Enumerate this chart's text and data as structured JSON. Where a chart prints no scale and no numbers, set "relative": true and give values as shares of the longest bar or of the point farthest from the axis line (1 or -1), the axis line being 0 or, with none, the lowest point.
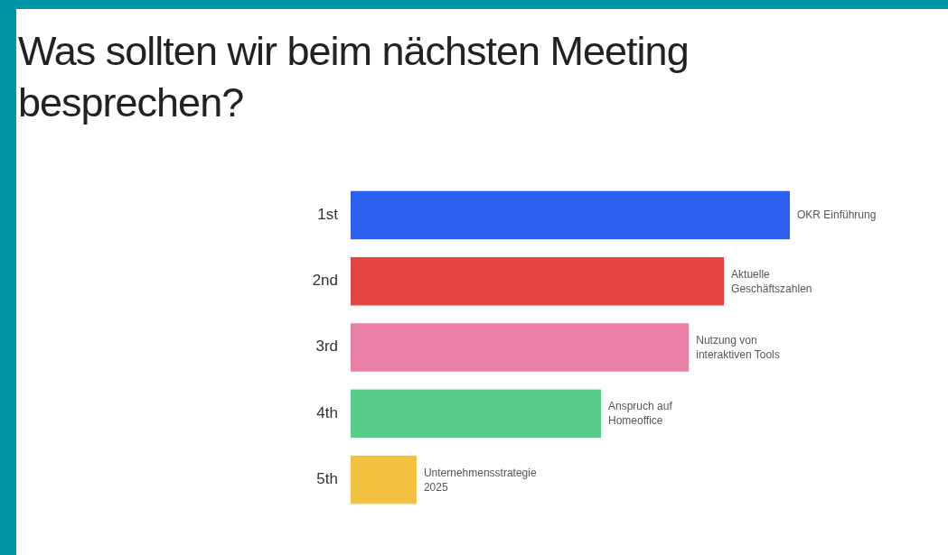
{
  "chart_data": {
    "type": "bar",
    "orientation": "horizontal",
    "relative": true,
    "title": "Was sollten wir beim nächsten Meeting besprechen?",
    "categories": [
      "1st",
      "2nd",
      "3rd",
      "4th",
      "5th"
    ],
    "values": [
      1,
      0.85,
      0.77,
      0.57,
      0.15
    ],
    "colors": [
      "#2d5ff0",
      "#e3443f",
      "#e97fa6",
      "#58cd8a",
      "#f3c140"
    ],
    "annotations": [
      {
        "text": "OKR Einführung",
        "x": 1,
        "y": "1st"
      },
      {
        "text": "Aktuelle Geschäftszahlen",
        "x": 0.85,
        "y": "2nd"
      },
      {
        "text": "Nutzung von interaktiven Tools",
        "x": 0.77,
        "y": "3rd"
      },
      {
        "text": "Anspruch auf Homeoffice",
        "x": 0.57,
        "y": "4th"
      },
      {
        "text": "Unternehmensstrategie 2025",
        "x": 0.15,
        "y": "5th"
      }
    ]
  }
}
